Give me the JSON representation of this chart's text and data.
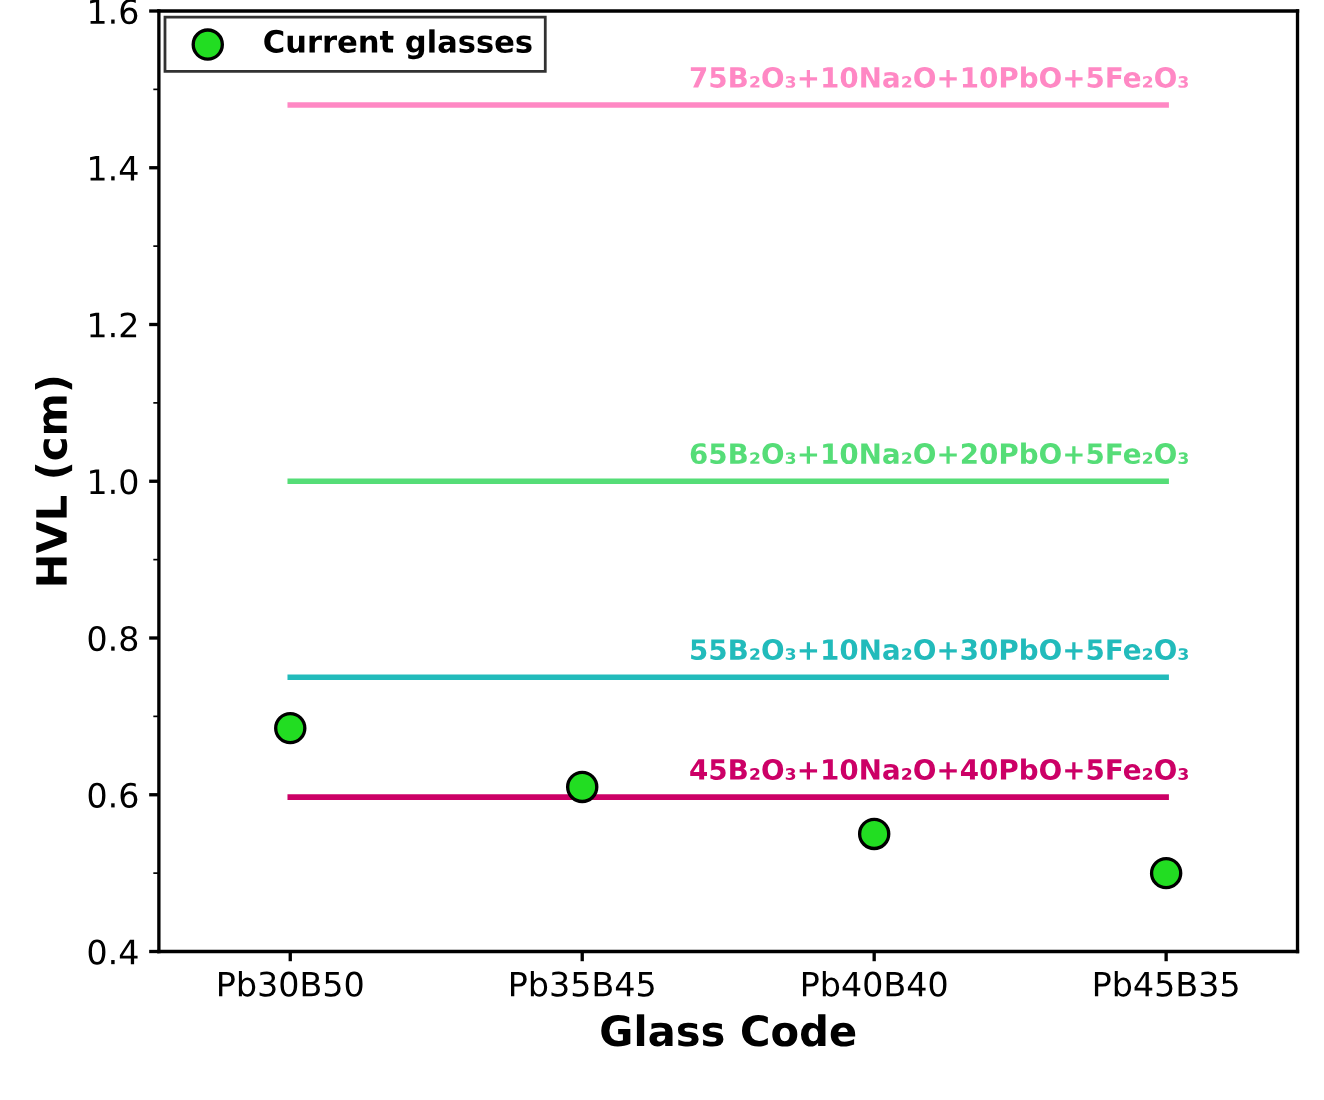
{
  "chart_data": {
    "type": "scatter",
    "xlabel": "Glass Code",
    "ylabel": "HVL (cm)",
    "categories": [
      "Pb30B50",
      "Pb35B45",
      "Pb40B40",
      "Pb45B35"
    ],
    "series": [
      {
        "name": "Current glasses",
        "color": "#22dd22",
        "marker": "circle",
        "values": [
          0.685,
          0.61,
          0.55,
          0.5
        ]
      },
      {
        "name": "75B₂O₃+10Na₂O+10PbO+5Fe₂O₃",
        "type": "line",
        "color": "#ff88c4",
        "values": [
          1.48,
          1.48,
          1.48,
          1.48
        ]
      },
      {
        "name": "65B₂O₃+10Na₂O+20PbO+5Fe₂O₃",
        "type": "line",
        "color": "#55dd77",
        "values": [
          1.0,
          1.0,
          1.0,
          1.0
        ]
      },
      {
        "name": "55B₂O₃+10Na₂O+30PbO+5Fe₂O₃",
        "type": "line",
        "color": "#22bbbb",
        "values": [
          0.75,
          0.75,
          0.75,
          0.75
        ]
      },
      {
        "name": "45B₂O₃+10Na₂O+40PbO+5Fe₂O₃",
        "type": "line",
        "color": "#cc0066",
        "values": [
          0.597,
          0.597,
          0.597,
          0.597
        ]
      }
    ],
    "ylim": [
      0.4,
      1.6
    ],
    "yticks": [
      0.4,
      0.6,
      0.8,
      {
        "value": 1.0,
        "label": "1.0"
      },
      1.2,
      1.4,
      1.6
    ],
    "marker": "none",
    "grid": false,
    "legend": "top left"
  }
}
